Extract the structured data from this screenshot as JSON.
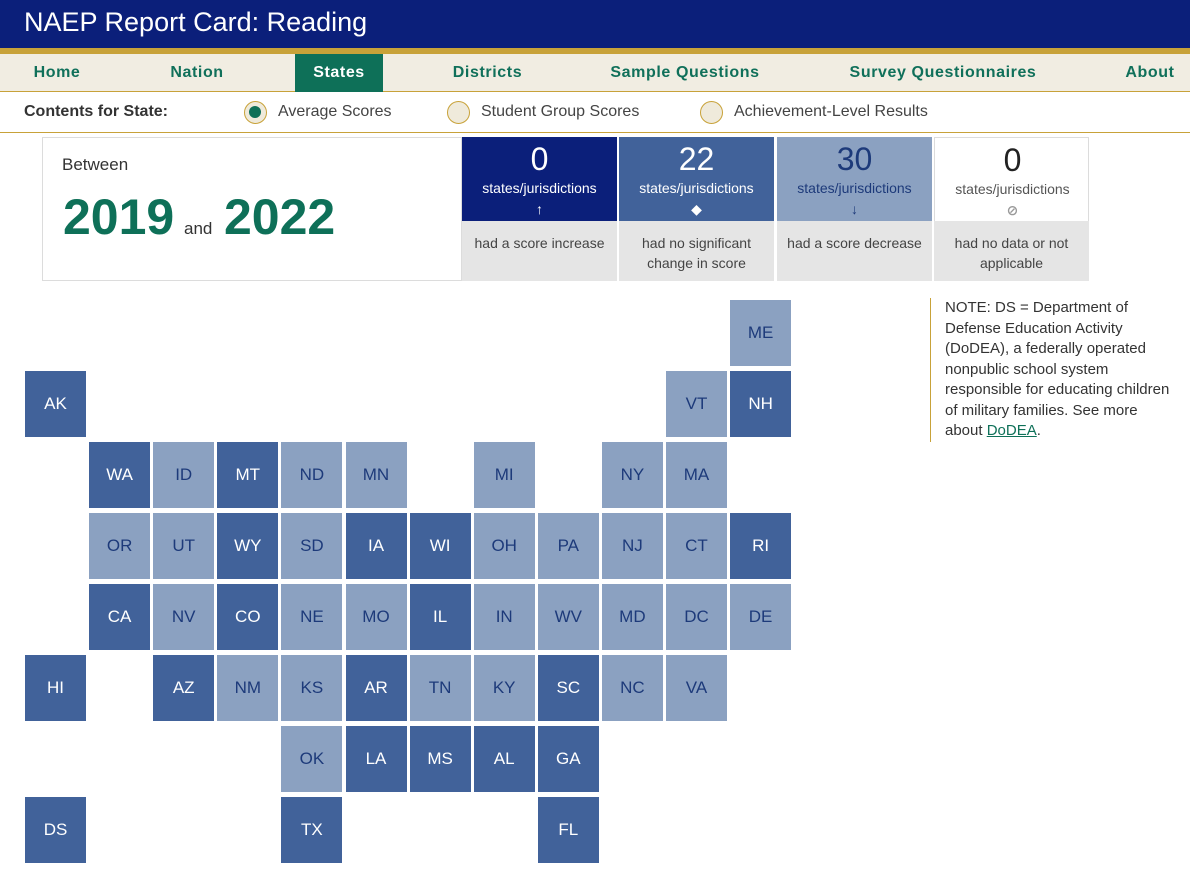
{
  "header": {
    "title": "NAEP Report Card: Reading"
  },
  "nav": {
    "items": [
      {
        "label": "Home",
        "active": false
      },
      {
        "label": "Nation",
        "active": false
      },
      {
        "label": "States",
        "active": true
      },
      {
        "label": "Districts",
        "active": false
      },
      {
        "label": "Sample Questions",
        "active": false
      },
      {
        "label": "Survey Questionnaires",
        "active": false
      },
      {
        "label": "About",
        "active": false
      }
    ]
  },
  "contents": {
    "label": "Contents for State:",
    "options": [
      {
        "label": "Average Scores",
        "selected": true
      },
      {
        "label": "Student Group Scores",
        "selected": false
      },
      {
        "label": "Achievement-Level Results",
        "selected": false
      }
    ]
  },
  "summary": {
    "between_label": "Between",
    "year_start": "2019",
    "and_label": "and",
    "year_end": "2022",
    "stats": [
      {
        "count": "0",
        "unit": "states/jurisdictions",
        "symbol": "↑",
        "description": "had a score increase",
        "color": "#0b1f7a"
      },
      {
        "count": "22",
        "unit": "states/jurisdictions",
        "symbol": "◆",
        "description": "had no significant change in score",
        "color": "#41629a"
      },
      {
        "count": "30",
        "unit": "states/jurisdictions",
        "symbol": "↓",
        "description": "had a score decrease",
        "color": "#8ba1c1"
      },
      {
        "count": "0",
        "unit": "states/jurisdictions",
        "symbol": "⊘",
        "description": "had no data or not applicable",
        "color": "#ffffff"
      }
    ]
  },
  "note": {
    "text": "NOTE: DS = Department of Defense Education Activity (DoDEA), a federally operated nonpublic school system responsible for educating children of military families. See more about ",
    "link": "DoDEA",
    "end": "."
  },
  "legend_colors": {
    "no_change": "#41629a",
    "decrease": "#8ba1c1"
  },
  "states": [
    {
      "code": "ME",
      "status": "decrease"
    },
    {
      "code": "AK",
      "status": "no_change"
    },
    {
      "code": "VT",
      "status": "decrease"
    },
    {
      "code": "NH",
      "status": "no_change"
    },
    {
      "code": "WA",
      "status": "no_change"
    },
    {
      "code": "ID",
      "status": "decrease"
    },
    {
      "code": "MT",
      "status": "no_change"
    },
    {
      "code": "ND",
      "status": "decrease"
    },
    {
      "code": "MN",
      "status": "decrease"
    },
    {
      "code": "MI",
      "status": "decrease"
    },
    {
      "code": "NY",
      "status": "decrease"
    },
    {
      "code": "MA",
      "status": "decrease"
    },
    {
      "code": "OR",
      "status": "decrease"
    },
    {
      "code": "UT",
      "status": "decrease"
    },
    {
      "code": "WY",
      "status": "no_change"
    },
    {
      "code": "SD",
      "status": "decrease"
    },
    {
      "code": "IA",
      "status": "no_change"
    },
    {
      "code": "WI",
      "status": "no_change"
    },
    {
      "code": "OH",
      "status": "decrease"
    },
    {
      "code": "PA",
      "status": "decrease"
    },
    {
      "code": "NJ",
      "status": "decrease"
    },
    {
      "code": "CT",
      "status": "decrease"
    },
    {
      "code": "RI",
      "status": "no_change"
    },
    {
      "code": "CA",
      "status": "no_change"
    },
    {
      "code": "NV",
      "status": "decrease"
    },
    {
      "code": "CO",
      "status": "no_change"
    },
    {
      "code": "NE",
      "status": "decrease"
    },
    {
      "code": "MO",
      "status": "decrease"
    },
    {
      "code": "IL",
      "status": "no_change"
    },
    {
      "code": "IN",
      "status": "decrease"
    },
    {
      "code": "WV",
      "status": "decrease"
    },
    {
      "code": "MD",
      "status": "decrease"
    },
    {
      "code": "DC",
      "status": "decrease"
    },
    {
      "code": "DE",
      "status": "decrease"
    },
    {
      "code": "HI",
      "status": "no_change"
    },
    {
      "code": "AZ",
      "status": "no_change"
    },
    {
      "code": "NM",
      "status": "decrease"
    },
    {
      "code": "KS",
      "status": "decrease"
    },
    {
      "code": "AR",
      "status": "no_change"
    },
    {
      "code": "TN",
      "status": "decrease"
    },
    {
      "code": "KY",
      "status": "decrease"
    },
    {
      "code": "SC",
      "status": "no_change"
    },
    {
      "code": "NC",
      "status": "decrease"
    },
    {
      "code": "VA",
      "status": "decrease"
    },
    {
      "code": "OK",
      "status": "decrease"
    },
    {
      "code": "LA",
      "status": "no_change"
    },
    {
      "code": "MS",
      "status": "no_change"
    },
    {
      "code": "AL",
      "status": "no_change"
    },
    {
      "code": "GA",
      "status": "no_change"
    },
    {
      "code": "DS",
      "status": "no_change"
    },
    {
      "code": "TX",
      "status": "no_change"
    },
    {
      "code": "FL",
      "status": "no_change"
    }
  ]
}
